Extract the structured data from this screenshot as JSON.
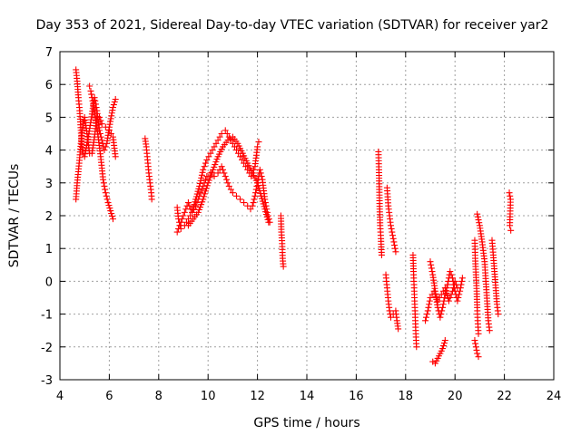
{
  "chart_data": {
    "type": "scatter",
    "title": "Day 353 of 2021, Sidereal Day-to-day VTEC variation (SDTVAR) for receiver yar2",
    "xlabel": "GPS time / hours",
    "ylabel": "SDTVAR / TECUs",
    "xlim": [
      4,
      24
    ],
    "ylim": [
      -3,
      7
    ],
    "xticks": [
      4,
      6,
      8,
      10,
      12,
      14,
      16,
      18,
      20,
      22,
      24
    ],
    "yticks": [
      -3,
      -2,
      -1,
      0,
      1,
      2,
      3,
      4,
      5,
      6,
      7
    ],
    "grid": true,
    "marker": "+",
    "series_color": "#ff0000",
    "segments": [
      [
        [
          4.65,
          6.45
        ],
        [
          4.7,
          6.1
        ],
        [
          4.75,
          5.6
        ],
        [
          4.8,
          5.2
        ],
        [
          4.85,
          4.6
        ],
        [
          4.9,
          4.0
        ],
        [
          5.0,
          3.8
        ],
        [
          5.15,
          4.4
        ],
        [
          5.3,
          5.1
        ],
        [
          5.4,
          5.6
        ],
        [
          5.5,
          5.2
        ],
        [
          5.6,
          4.6
        ],
        [
          5.7,
          4.3
        ],
        [
          5.8,
          4.0
        ],
        [
          5.9,
          4.2
        ],
        [
          6.0,
          4.7
        ],
        [
          6.15,
          5.3
        ],
        [
          6.25,
          5.55
        ]
      ],
      [
        [
          4.65,
          2.5
        ],
        [
          4.7,
          3.0
        ],
        [
          4.78,
          3.6
        ],
        [
          4.85,
          4.2
        ],
        [
          4.92,
          4.7
        ],
        [
          5.0,
          5.0
        ],
        [
          5.1,
          4.5
        ],
        [
          5.2,
          3.9
        ],
        [
          5.3,
          3.9
        ],
        [
          5.4,
          4.4
        ],
        [
          5.5,
          5.0
        ],
        [
          5.6,
          5.0
        ],
        [
          5.7,
          4.8
        ],
        [
          5.85,
          4.7
        ],
        [
          6.0,
          4.6
        ],
        [
          6.15,
          4.4
        ],
        [
          6.25,
          3.8
        ]
      ],
      [
        [
          5.2,
          5.95
        ],
        [
          5.25,
          5.8
        ],
        [
          5.35,
          5.4
        ],
        [
          5.45,
          4.9
        ],
        [
          5.55,
          4.4
        ],
        [
          5.65,
          3.8
        ],
        [
          5.75,
          3.1
        ],
        [
          5.85,
          2.7
        ],
        [
          5.95,
          2.4
        ],
        [
          6.05,
          2.15
        ],
        [
          6.15,
          1.9
        ]
      ],
      [
        [
          7.45,
          4.35
        ],
        [
          7.5,
          4.1
        ],
        [
          7.55,
          3.7
        ],
        [
          7.6,
          3.3
        ],
        [
          7.65,
          3.0
        ],
        [
          7.7,
          2.7
        ],
        [
          7.72,
          2.5
        ]
      ],
      [
        [
          8.75,
          2.25
        ],
        [
          8.8,
          1.9
        ],
        [
          8.9,
          1.6
        ],
        [
          9.05,
          1.7
        ],
        [
          9.2,
          1.9
        ],
        [
          9.35,
          2.1
        ],
        [
          9.5,
          2.3
        ],
        [
          9.65,
          2.6
        ],
        [
          9.8,
          2.9
        ],
        [
          9.95,
          3.2
        ],
        [
          10.1,
          3.3
        ],
        [
          10.25,
          3.2
        ],
        [
          10.4,
          3.3
        ],
        [
          10.55,
          3.5
        ],
        [
          10.7,
          3.2
        ],
        [
          10.85,
          2.9
        ],
        [
          11.0,
          2.7
        ],
        [
          11.15,
          2.6
        ],
        [
          11.3,
          2.5
        ],
        [
          11.45,
          2.4
        ],
        [
          11.6,
          2.3
        ],
        [
          11.72,
          2.2
        ],
        [
          11.8,
          2.3
        ],
        [
          11.9,
          2.6
        ],
        [
          12.0,
          3.0
        ],
        [
          12.1,
          3.4
        ],
        [
          12.2,
          3.1
        ],
        [
          12.3,
          2.5
        ],
        [
          12.4,
          2.1
        ],
        [
          12.5,
          1.8
        ]
      ],
      [
        [
          8.75,
          1.5
        ],
        [
          8.9,
          1.8
        ],
        [
          9.05,
          2.1
        ],
        [
          9.2,
          2.4
        ],
        [
          9.35,
          2.1
        ],
        [
          9.5,
          2.5
        ],
        [
          9.65,
          2.9
        ],
        [
          9.8,
          3.4
        ],
        [
          9.95,
          3.7
        ],
        [
          10.1,
          3.9
        ],
        [
          10.25,
          4.1
        ],
        [
          10.4,
          4.3
        ],
        [
          10.55,
          4.5
        ],
        [
          10.7,
          4.6
        ],
        [
          10.85,
          4.4
        ],
        [
          11.0,
          4.2
        ],
        [
          11.15,
          4.0
        ],
        [
          11.3,
          3.8
        ],
        [
          11.45,
          3.6
        ],
        [
          11.6,
          3.4
        ],
        [
          11.75,
          3.2
        ],
        [
          11.9,
          3.5
        ],
        [
          12.0,
          4.1
        ],
        [
          12.05,
          4.25
        ]
      ],
      [
        [
          9.2,
          1.7
        ],
        [
          9.4,
          1.9
        ],
        [
          9.6,
          2.1
        ],
        [
          9.8,
          2.5
        ],
        [
          10.0,
          3.0
        ],
        [
          10.2,
          3.4
        ],
        [
          10.4,
          3.8
        ],
        [
          10.6,
          4.1
        ],
        [
          10.8,
          4.3
        ],
        [
          11.0,
          4.4
        ],
        [
          11.2,
          4.2
        ],
        [
          11.4,
          3.9
        ],
        [
          11.6,
          3.6
        ],
        [
          11.8,
          3.3
        ],
        [
          12.0,
          3.0
        ],
        [
          12.15,
          2.6
        ],
        [
          12.3,
          2.2
        ],
        [
          12.45,
          1.8
        ]
      ],
      [
        [
          12.95,
          2.0
        ],
        [
          12.97,
          1.5
        ],
        [
          13.0,
          1.15
        ],
        [
          13.02,
          0.7
        ],
        [
          13.05,
          0.45
        ]
      ],
      [
        [
          16.9,
          3.95
        ],
        [
          16.92,
          3.4
        ],
        [
          16.95,
          2.2
        ],
        [
          16.97,
          1.7
        ],
        [
          17.0,
          1.3
        ],
        [
          17.03,
          0.8
        ]
      ],
      [
        [
          17.25,
          2.85
        ],
        [
          17.3,
          2.3
        ],
        [
          17.35,
          2.0
        ],
        [
          17.4,
          1.7
        ],
        [
          17.45,
          1.5
        ],
        [
          17.5,
          1.3
        ],
        [
          17.55,
          1.1
        ],
        [
          17.6,
          0.9
        ]
      ],
      [
        [
          17.2,
          0.2
        ],
        [
          17.25,
          -0.2
        ],
        [
          17.3,
          -0.6
        ],
        [
          17.35,
          -0.9
        ],
        [
          17.4,
          -1.1
        ],
        [
          17.5,
          -1.0
        ],
        [
          17.6,
          -0.9
        ],
        [
          17.65,
          -1.2
        ],
        [
          17.7,
          -1.45
        ]
      ],
      [
        [
          18.3,
          0.8
        ],
        [
          18.32,
          0.3
        ],
        [
          18.34,
          -0.1
        ],
        [
          18.36,
          -0.5
        ],
        [
          18.38,
          -0.9
        ],
        [
          18.4,
          -1.3
        ],
        [
          18.42,
          -1.7
        ],
        [
          18.44,
          -2.0
        ]
      ],
      [
        [
          19.0,
          0.6
        ],
        [
          19.1,
          0.2
        ],
        [
          19.2,
          -0.3
        ],
        [
          19.3,
          -0.8
        ],
        [
          19.4,
          -1.1
        ],
        [
          19.5,
          -0.8
        ],
        [
          19.6,
          -0.4
        ],
        [
          19.7,
          -0.1
        ],
        [
          19.8,
          0.3
        ],
        [
          19.9,
          0.1
        ],
        [
          20.0,
          -0.3
        ],
        [
          20.1,
          -0.6
        ],
        [
          20.2,
          -0.3
        ],
        [
          20.3,
          0.1
        ]
      ],
      [
        [
          19.1,
          -2.45
        ],
        [
          19.2,
          -2.5
        ],
        [
          19.3,
          -2.35
        ],
        [
          19.4,
          -2.2
        ],
        [
          19.5,
          -2.05
        ],
        [
          19.6,
          -1.8
        ]
      ],
      [
        [
          18.8,
          -1.2
        ],
        [
          18.9,
          -0.9
        ],
        [
          19.0,
          -0.5
        ],
        [
          19.15,
          -0.3
        ],
        [
          19.3,
          -0.6
        ],
        [
          19.45,
          -0.4
        ],
        [
          19.6,
          -0.2
        ],
        [
          19.75,
          -0.6
        ],
        [
          19.9,
          -0.3
        ],
        [
          20.0,
          0.0
        ],
        [
          20.1,
          -0.2
        ]
      ],
      [
        [
          20.8,
          1.25
        ],
        [
          20.82,
          0.7
        ],
        [
          20.85,
          0.2
        ],
        [
          20.88,
          -0.3
        ],
        [
          20.9,
          -0.8
        ],
        [
          20.92,
          -1.2
        ],
        [
          20.95,
          -1.6
        ]
      ],
      [
        [
          20.9,
          2.05
        ],
        [
          21.0,
          1.7
        ],
        [
          21.1,
          1.2
        ],
        [
          21.2,
          0.6
        ],
        [
          21.25,
          0.0
        ],
        [
          21.3,
          -0.6
        ],
        [
          21.35,
          -1.2
        ],
        [
          21.4,
          -1.5
        ]
      ],
      [
        [
          20.8,
          -1.8
        ],
        [
          20.85,
          -2.0
        ],
        [
          20.9,
          -2.2
        ],
        [
          20.95,
          -2.3
        ]
      ],
      [
        [
          21.5,
          1.25
        ],
        [
          21.55,
          0.8
        ],
        [
          21.6,
          0.3
        ],
        [
          21.65,
          -0.2
        ],
        [
          21.7,
          -0.7
        ],
        [
          21.75,
          -1.0
        ]
      ],
      [
        [
          22.2,
          2.7
        ],
        [
          22.25,
          2.5
        ],
        [
          22.22,
          1.7
        ],
        [
          22.26,
          1.55
        ]
      ]
    ]
  }
}
